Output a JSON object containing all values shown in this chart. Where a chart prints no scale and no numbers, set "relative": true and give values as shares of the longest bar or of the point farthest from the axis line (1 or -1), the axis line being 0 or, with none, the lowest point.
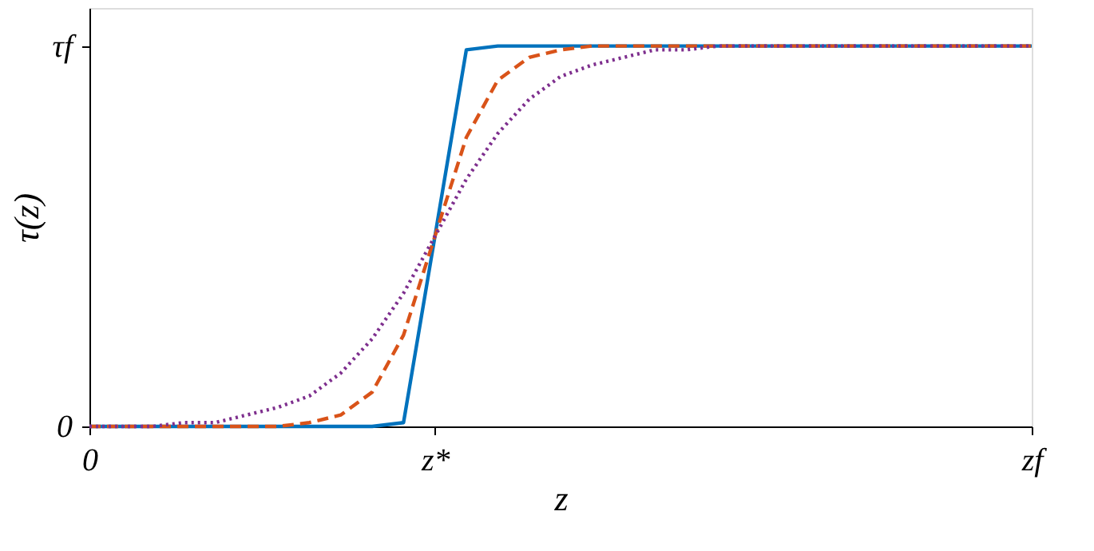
{
  "chart_data": {
    "type": "line",
    "xlabel": "z",
    "ylabel": "τ(z)",
    "relative": true,
    "categories": [
      "0",
      null,
      null,
      null,
      null,
      null,
      null,
      null,
      null,
      null,
      null,
      "z*",
      null,
      null,
      null,
      null,
      null,
      null,
      null,
      null,
      null,
      null,
      null,
      null,
      null,
      null,
      null,
      null,
      null,
      null,
      "zf"
    ],
    "annotations": [
      "0",
      "τf"
    ],
    "marker": "none",
    "series": [
      {
        "color": "#0072bd",
        "line_style": "solid",
        "values": [
          0,
          0,
          0,
          0,
          0,
          0,
          0,
          0,
          0,
          0,
          0.01,
          0.5,
          0.99,
          1,
          1,
          1,
          1,
          1,
          1,
          1,
          1,
          1,
          1,
          1,
          1,
          1,
          1,
          1,
          1,
          1,
          1
        ]
      },
      {
        "color": "#d95319",
        "line_style": "dashed",
        "values": [
          0,
          0,
          0,
          0,
          0,
          0,
          0,
          0.01,
          0.03,
          0.09,
          0.24,
          0.5,
          0.76,
          0.91,
          0.97,
          0.99,
          1,
          1,
          1,
          1,
          1,
          1,
          1,
          1,
          1,
          1,
          1,
          1,
          1,
          1,
          1
        ]
      },
      {
        "color": "#7e2f8e",
        "line_style": "dotted",
        "values": [
          0,
          0,
          0,
          0.01,
          0.01,
          0.03,
          0.05,
          0.08,
          0.14,
          0.23,
          0.35,
          0.5,
          0.65,
          0.77,
          0.86,
          0.92,
          0.95,
          0.97,
          0.99,
          0.99,
          1,
          1,
          1,
          1,
          1,
          1,
          1,
          1,
          1,
          1,
          1
        ]
      }
    ]
  }
}
